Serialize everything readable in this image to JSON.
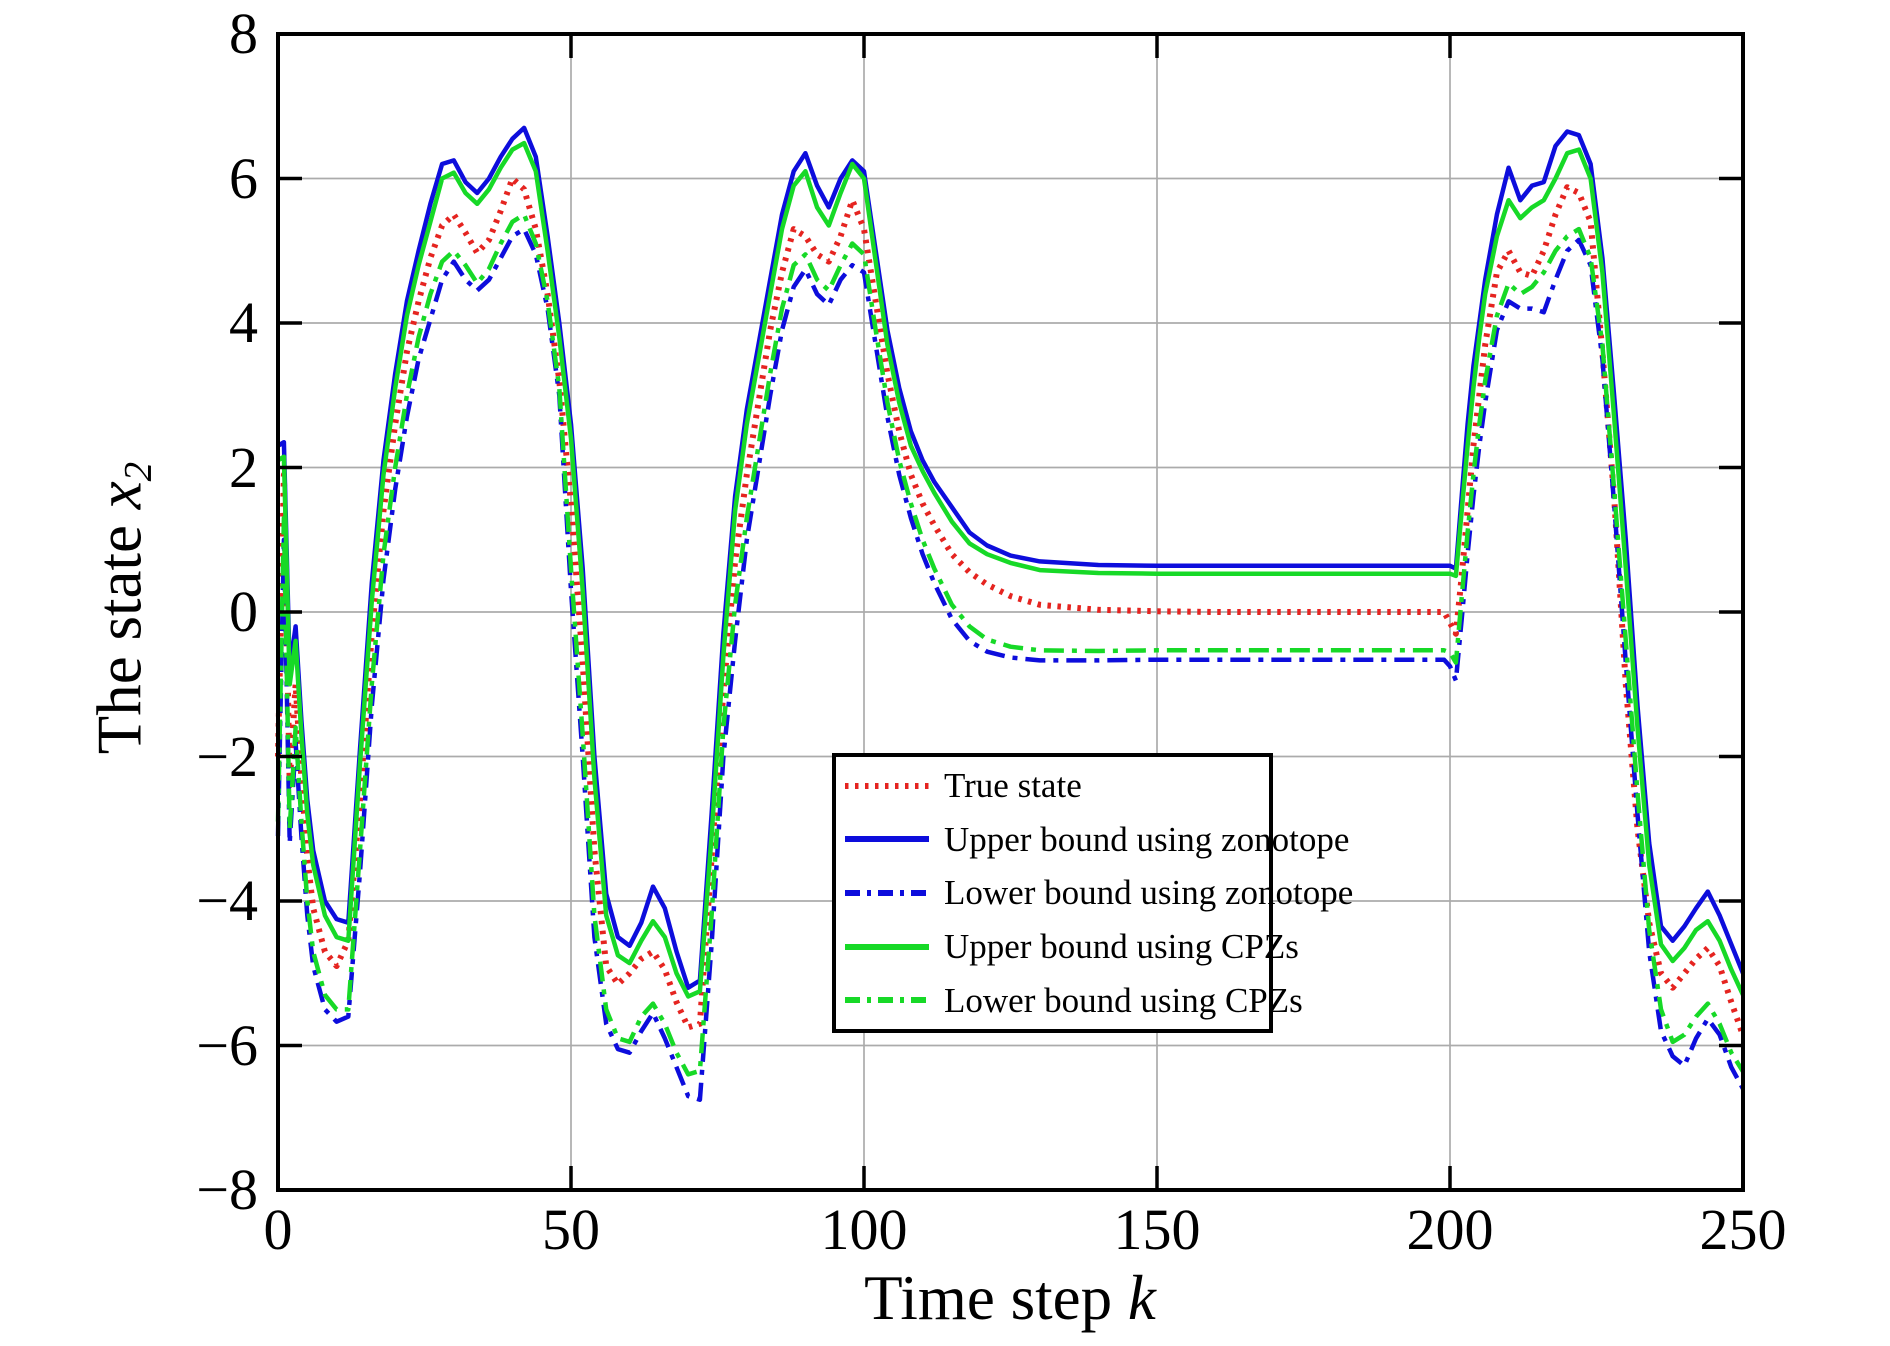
{
  "figure": {
    "background": "#ffffff",
    "grid_color": "#ababab",
    "axis_color": "#000000",
    "xlabel": {
      "prefix": "Time step ",
      "variable": "k"
    },
    "ylabel": {
      "prefix": "The state ",
      "variable": "x",
      "subscript": "2"
    },
    "x_tick_labels": [
      "0",
      "50",
      "100",
      "150",
      "200",
      "250"
    ],
    "y_tick_labels": [
      "−8",
      "−6",
      "−4",
      "−2",
      "0",
      "2",
      "4",
      "6",
      "8"
    ]
  },
  "legend": {
    "entries": [
      {
        "label": "True state"
      },
      {
        "label": "Upper bound using zonotope"
      },
      {
        "label": "Lower bound using zonotope"
      },
      {
        "label": "Upper bound using CPZs"
      },
      {
        "label": "Lower bound using CPZs"
      }
    ]
  },
  "chart_data": {
    "type": "line",
    "title": "",
    "xlabel": "Time step k",
    "ylabel": "The state x_2",
    "xlim": [
      0,
      250
    ],
    "ylim": [
      -8,
      8
    ],
    "x_ticks": [
      0,
      50,
      100,
      150,
      200,
      250
    ],
    "y_ticks": [
      -8,
      -6,
      -4,
      -2,
      0,
      2,
      4,
      6,
      8
    ],
    "grid": true,
    "legend_position": "lower center",
    "x": [
      0,
      1,
      2,
      3,
      4,
      5,
      6,
      8,
      10,
      12,
      14,
      16,
      18,
      20,
      22,
      24,
      26,
      28,
      30,
      32,
      34,
      36,
      38,
      40,
      42,
      44,
      46,
      48,
      50,
      52,
      54,
      56,
      58,
      60,
      62,
      64,
      66,
      68,
      70,
      72,
      74,
      76,
      78,
      80,
      82,
      84,
      86,
      88,
      90,
      92,
      94,
      96,
      98,
      100,
      102,
      104,
      106,
      108,
      110,
      112,
      115,
      118,
      121,
      125,
      130,
      140,
      150,
      160,
      170,
      180,
      190,
      195,
      199,
      200,
      201,
      202,
      203,
      204,
      205,
      206,
      208,
      210,
      212,
      214,
      216,
      218,
      220,
      222,
      224,
      226,
      228,
      230,
      232,
      234,
      236,
      238,
      240,
      242,
      244,
      246,
      248,
      250
    ],
    "series": [
      {
        "name": "True state",
        "color": "#e52420",
        "style": "dotted",
        "line_width": 6,
        "values": [
          -2.0,
          1.9,
          -2.4,
          -1.0,
          -2.3,
          -3.4,
          -4.1,
          -4.7,
          -4.9,
          -4.55,
          -2.6,
          -0.3,
          1.4,
          2.6,
          3.6,
          4.3,
          4.9,
          5.35,
          5.5,
          5.25,
          4.97,
          5.15,
          5.55,
          6.0,
          5.85,
          5.3,
          4.4,
          3.2,
          1.5,
          -0.7,
          -3.3,
          -4.9,
          -5.15,
          -5.0,
          -4.8,
          -4.7,
          -4.95,
          -5.4,
          -5.75,
          -5.7,
          -3.4,
          -1.1,
          0.7,
          1.9,
          2.9,
          3.9,
          4.7,
          5.3,
          5.2,
          4.95,
          4.85,
          5.2,
          5.7,
          5.3,
          4.3,
          3.3,
          2.5,
          1.9,
          1.5,
          1.2,
          0.8,
          0.55,
          0.38,
          0.22,
          0.1,
          0.03,
          0.01,
          0.0,
          0.0,
          0.0,
          0.0,
          0.0,
          0.0,
          -0.15,
          -0.3,
          0.5,
          1.4,
          2.3,
          3.0,
          3.7,
          4.7,
          5.0,
          4.7,
          4.65,
          5.0,
          5.5,
          5.88,
          5.8,
          5.4,
          3.6,
          1.6,
          -1.0,
          -3.0,
          -4.3,
          -5.0,
          -5.2,
          -5.0,
          -4.8,
          -4.65,
          -4.9,
          -5.4,
          -5.86
        ]
      },
      {
        "name": "Upper bound using zonotope",
        "color": "#0d0ddc",
        "style": "solid",
        "line_width": 4.5,
        "values": [
          2.3,
          2.35,
          -0.8,
          -0.2,
          -1.5,
          -2.6,
          -3.3,
          -4.0,
          -4.25,
          -4.3,
          -1.9,
          0.4,
          2.1,
          3.3,
          4.3,
          5.0,
          5.65,
          6.2,
          6.25,
          5.95,
          5.8,
          6.0,
          6.3,
          6.55,
          6.7,
          6.3,
          5.2,
          4.0,
          2.6,
          0.6,
          -2.0,
          -3.9,
          -4.5,
          -4.62,
          -4.3,
          -3.8,
          -4.1,
          -4.7,
          -5.2,
          -5.1,
          -2.8,
          -0.3,
          1.6,
          2.8,
          3.7,
          4.6,
          5.5,
          6.1,
          6.35,
          5.9,
          5.6,
          6.0,
          6.25,
          6.1,
          5.0,
          3.9,
          3.1,
          2.5,
          2.1,
          1.8,
          1.45,
          1.1,
          0.92,
          0.78,
          0.7,
          0.65,
          0.64,
          0.64,
          0.64,
          0.64,
          0.64,
          0.64,
          0.64,
          0.64,
          0.6,
          1.6,
          2.6,
          3.4,
          4.0,
          4.6,
          5.5,
          6.15,
          5.7,
          5.9,
          5.95,
          6.45,
          6.65,
          6.6,
          6.2,
          4.9,
          3.0,
          1.0,
          -1.3,
          -3.2,
          -4.35,
          -4.55,
          -4.35,
          -4.1,
          -3.87,
          -4.2,
          -4.6,
          -5.0
        ]
      },
      {
        "name": "Lower bound using zonotope",
        "color": "#0d0ddc",
        "style": "dashdot",
        "line_width": 4.5,
        "values": [
          -3.1,
          1.0,
          -3.2,
          -1.8,
          -3.1,
          -4.2,
          -4.9,
          -5.5,
          -5.67,
          -5.6,
          -3.6,
          -1.3,
          0.45,
          1.7,
          2.7,
          3.5,
          4.05,
          4.6,
          4.85,
          4.6,
          4.45,
          4.6,
          4.9,
          5.2,
          5.3,
          4.95,
          4.2,
          3.0,
          0.3,
          -2.0,
          -4.5,
          -5.7,
          -6.05,
          -6.1,
          -5.8,
          -5.55,
          -5.9,
          -6.3,
          -6.7,
          -6.75,
          -4.6,
          -2.0,
          -0.4,
          1.0,
          2.0,
          3.0,
          3.9,
          4.5,
          4.74,
          4.4,
          4.25,
          4.6,
          4.8,
          4.7,
          3.7,
          2.7,
          1.9,
          1.3,
          0.8,
          0.4,
          -0.1,
          -0.4,
          -0.55,
          -0.63,
          -0.67,
          -0.67,
          -0.66,
          -0.66,
          -0.66,
          -0.66,
          -0.66,
          -0.66,
          -0.66,
          -0.75,
          -0.95,
          -0.1,
          0.8,
          1.6,
          2.3,
          2.9,
          3.9,
          4.3,
          4.2,
          4.2,
          4.15,
          4.6,
          5.0,
          5.15,
          4.8,
          3.5,
          1.5,
          -0.7,
          -2.8,
          -4.7,
          -5.8,
          -6.15,
          -6.28,
          -5.9,
          -5.63,
          -5.85,
          -6.3,
          -6.6
        ]
      },
      {
        "name": "Upper bound using CPZs",
        "color": "#17d927",
        "style": "solid",
        "line_width": 4.5,
        "values": [
          2.1,
          2.15,
          -1.0,
          -0.4,
          -1.7,
          -2.8,
          -3.5,
          -4.2,
          -4.5,
          -4.55,
          -2.1,
          0.15,
          1.9,
          3.1,
          4.1,
          4.8,
          5.4,
          6.0,
          6.08,
          5.8,
          5.65,
          5.85,
          6.15,
          6.4,
          6.49,
          6.1,
          5.0,
          3.8,
          2.4,
          0.3,
          -2.3,
          -4.2,
          -4.75,
          -4.86,
          -4.55,
          -4.28,
          -4.5,
          -5.0,
          -5.32,
          -5.25,
          -3.1,
          -0.6,
          1.4,
          2.6,
          3.5,
          4.4,
          5.3,
          5.9,
          6.1,
          5.6,
          5.35,
          5.8,
          6.2,
          6.0,
          4.85,
          3.7,
          2.9,
          2.3,
          1.95,
          1.65,
          1.25,
          0.95,
          0.8,
          0.68,
          0.58,
          0.54,
          0.53,
          0.53,
          0.53,
          0.53,
          0.53,
          0.53,
          0.53,
          0.53,
          0.5,
          1.4,
          2.3,
          3.1,
          3.8,
          4.4,
          5.2,
          5.7,
          5.45,
          5.6,
          5.7,
          6.0,
          6.35,
          6.4,
          6.0,
          4.7,
          2.7,
          0.6,
          -1.6,
          -3.5,
          -4.6,
          -4.83,
          -4.65,
          -4.4,
          -4.28,
          -4.55,
          -4.95,
          -5.3
        ]
      },
      {
        "name": "Lower bound using CPZs",
        "color": "#17d927",
        "style": "dashdot",
        "line_width": 4.5,
        "values": [
          -2.9,
          1.3,
          -3.0,
          -1.6,
          -2.9,
          -4.0,
          -4.7,
          -5.3,
          -5.5,
          -5.5,
          -3.3,
          -1.0,
          0.8,
          2.0,
          3.0,
          3.8,
          4.4,
          4.85,
          5.0,
          4.8,
          4.55,
          4.75,
          5.1,
          5.4,
          5.5,
          5.1,
          4.3,
          3.1,
          0.6,
          -1.7,
          -4.2,
          -5.5,
          -5.9,
          -5.95,
          -5.6,
          -5.42,
          -5.7,
          -6.1,
          -6.4,
          -6.35,
          -4.2,
          -1.6,
          0.1,
          1.3,
          2.3,
          3.3,
          4.2,
          4.8,
          4.95,
          4.6,
          4.45,
          4.8,
          5.1,
          4.95,
          3.9,
          2.9,
          2.1,
          1.5,
          1.0,
          0.6,
          0.1,
          -0.2,
          -0.38,
          -0.48,
          -0.53,
          -0.54,
          -0.53,
          -0.53,
          -0.53,
          -0.53,
          -0.53,
          -0.53,
          -0.53,
          -0.56,
          -0.7,
          0.2,
          1.1,
          1.9,
          2.6,
          3.2,
          4.1,
          4.55,
          4.4,
          4.5,
          4.7,
          5.0,
          5.2,
          5.3,
          4.9,
          3.7,
          1.7,
          -0.4,
          -2.5,
          -4.4,
          -5.5,
          -5.95,
          -5.85,
          -5.6,
          -5.42,
          -5.7,
          -6.1,
          -6.36
        ]
      }
    ]
  }
}
